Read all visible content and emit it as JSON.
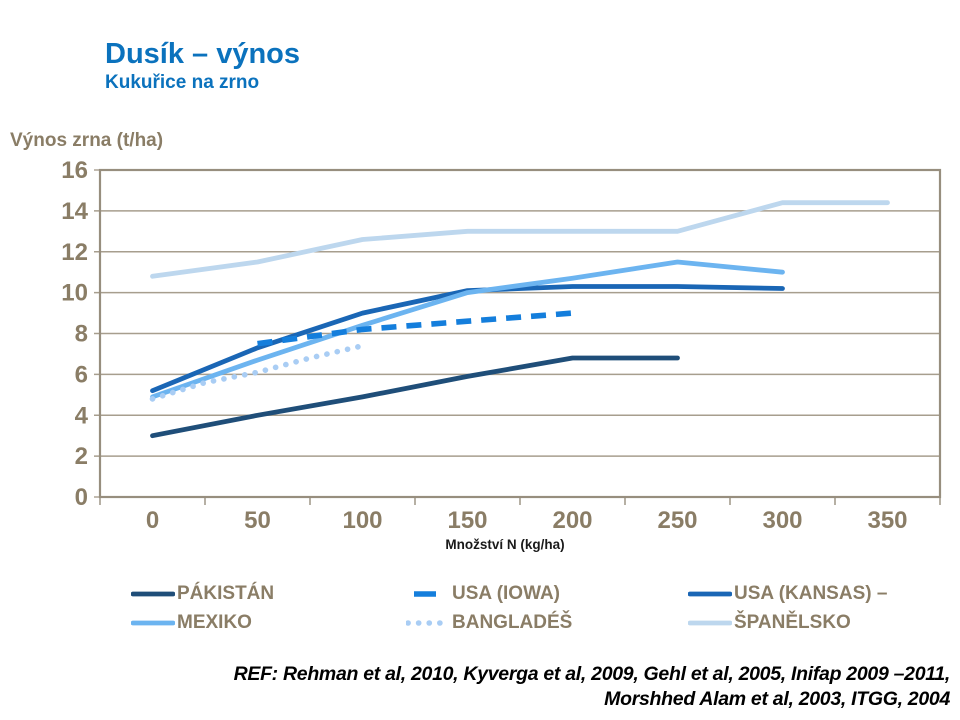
{
  "header": {
    "title": "Dusík – výnos",
    "subtitle": "Kukuřice na zrno",
    "title_color": "#0b72bd"
  },
  "chart_data": {
    "type": "line",
    "title": "Dusík – výnos / Kukuřice na zrno",
    "xlabel": "Množství N (kg/ha)",
    "ylabel": "Výnos zrna (t/ha)",
    "categories": [
      0,
      50,
      100,
      150,
      200,
      250,
      300,
      350
    ],
    "ylim": [
      0,
      16
    ],
    "ytick_step": 2,
    "grid": true,
    "legend_position": "bottom",
    "series": [
      {
        "name": "PÁKISTÁN",
        "color": "#1f4e79",
        "style": "solid",
        "points": [
          [
            0,
            3.0
          ],
          [
            50,
            4.0
          ],
          [
            100,
            4.9
          ],
          [
            150,
            5.9
          ],
          [
            200,
            6.8
          ],
          [
            250,
            6.8
          ]
        ]
      },
      {
        "name": "USA (KANSAS)",
        "color": "#1a66b5",
        "style": "solid",
        "points": [
          [
            0,
            5.2
          ],
          [
            50,
            7.3
          ],
          [
            100,
            9.0
          ],
          [
            150,
            10.1
          ],
          [
            200,
            10.3
          ],
          [
            250,
            10.3
          ],
          [
            300,
            10.2
          ]
        ]
      },
      {
        "name": "MEXIKO",
        "color": "#6cb4f0",
        "style": "solid",
        "points": [
          [
            0,
            4.9
          ],
          [
            50,
            6.7
          ],
          [
            100,
            8.4
          ],
          [
            150,
            10.0
          ],
          [
            200,
            10.7
          ],
          [
            250,
            11.5
          ],
          [
            300,
            11.0
          ]
        ]
      },
      {
        "name": "BANGLADÉŠ",
        "color": "#a9cdf4",
        "style": "dotted",
        "points": [
          [
            0,
            4.8
          ],
          [
            25,
            5.6
          ],
          [
            50,
            6.1
          ],
          [
            75,
            6.8
          ],
          [
            100,
            7.4
          ]
        ]
      },
      {
        "name": "USA (IOWA)",
        "color": "#147edc",
        "style": "dashed",
        "points": [
          [
            50,
            7.5
          ],
          [
            100,
            8.2
          ],
          [
            150,
            8.6
          ],
          [
            200,
            9.0
          ]
        ]
      },
      {
        "name": "ŠPANĚLSKO",
        "color": "#bdd7ee",
        "style": "solid",
        "points": [
          [
            0,
            10.8
          ],
          [
            50,
            11.5
          ],
          [
            100,
            12.6
          ],
          [
            150,
            13.0
          ],
          [
            200,
            13.0
          ],
          [
            250,
            13.0
          ],
          [
            300,
            14.4
          ],
          [
            350,
            14.4
          ]
        ]
      }
    ]
  },
  "axis": {
    "text_color": "#8a7d66",
    "grid_color": "#a79e8e",
    "line_color": "#978e7e",
    "xlabel_color": "#1a1a1a"
  },
  "legend": {
    "items": [
      {
        "label": "PÁKISTÁN",
        "series": 0
      },
      {
        "label": "USA (IOWA)",
        "series": 4
      },
      {
        "label": "USA (KANSAS) –",
        "series": 1
      },
      {
        "label": "MEXIKO",
        "series": 2
      },
      {
        "label": "BANGLADÉŠ",
        "series": 3
      },
      {
        "label": "ŠPANĚLSKO",
        "series": 5
      }
    ]
  },
  "footer": {
    "line1": "REF: Rehman et al, 2010, Kyverga et al, 2009, Gehl et al, 2005, Inifap 2009 –2011,",
    "line2": "Morshhed Alam et al, 2003, ITGG, 2004"
  }
}
